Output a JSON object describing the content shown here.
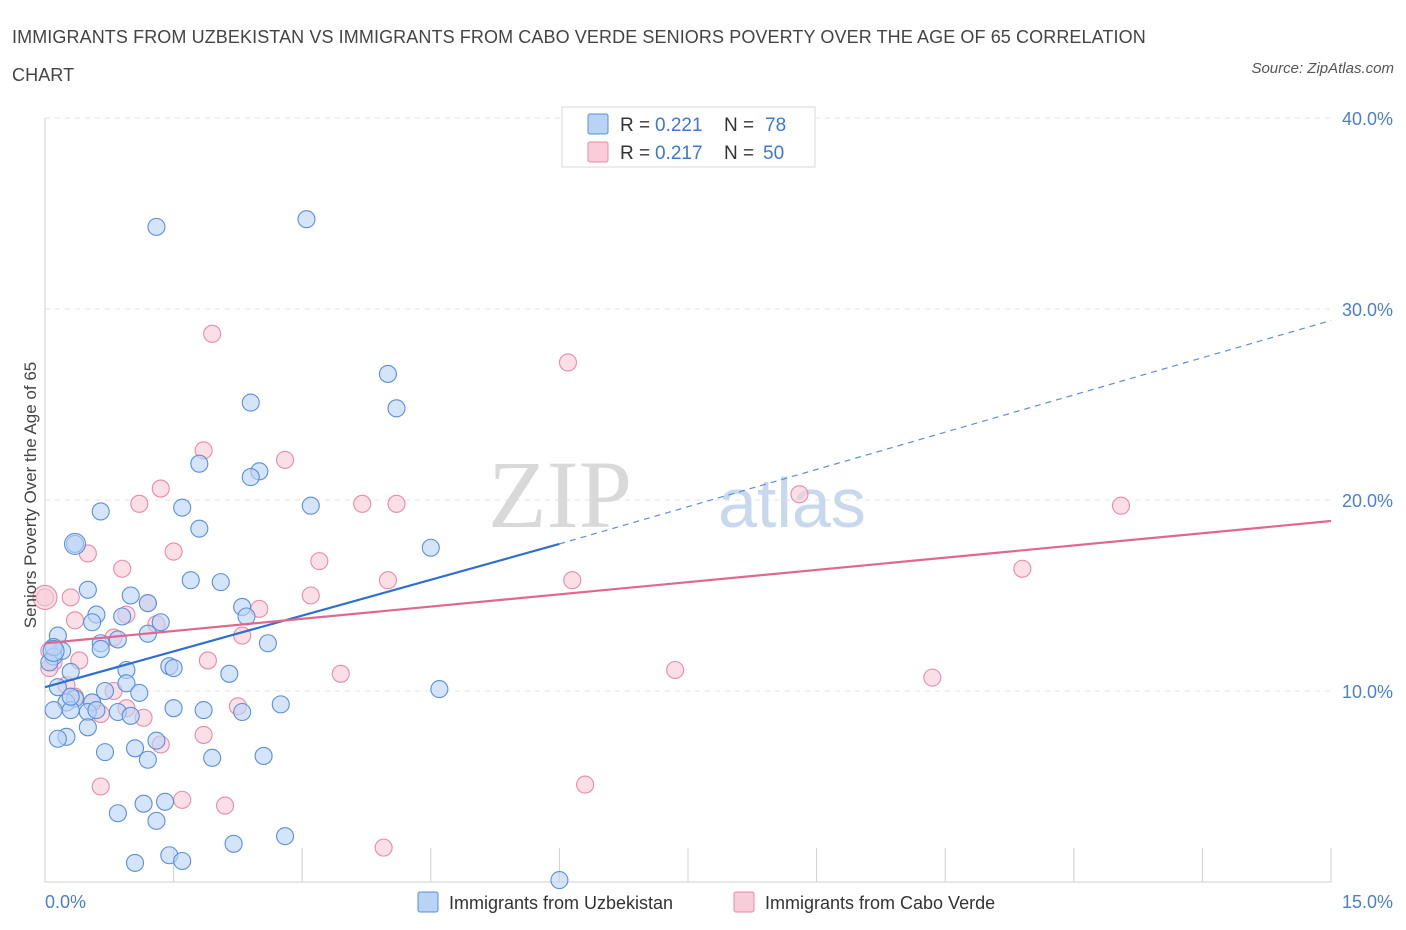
{
  "title": "IMMIGRANTS FROM UZBEKISTAN VS IMMIGRANTS FROM CABO VERDE SENIORS POVERTY OVER THE AGE OF 65 CORRELATION CHART",
  "source": "Source: ZipAtlas.com",
  "watermark": {
    "zip": "ZIP",
    "atlas": "atlas"
  },
  "legend_top": [
    {
      "r_label": "R =",
      "r_value": "0.221",
      "n_label": "N =",
      "n_value": "78",
      "color": "#5b8fd9"
    },
    {
      "r_label": "R =",
      "r_value": "0.217",
      "n_label": "N =",
      "n_value": "50",
      "color": "#e98aa8"
    }
  ],
  "chart_data": {
    "type": "scatter",
    "title": "IMMIGRANTS FROM UZBEKISTAN VS IMMIGRANTS FROM CABO VERDE SENIORS POVERTY OVER THE AGE OF 65 CORRELATION CHART",
    "xlabel": "",
    "ylabel": "Seniors Poverty Over the Age of 65",
    "xlim": [
      0,
      15
    ],
    "ylim": [
      0,
      40
    ],
    "x_ticks": [
      "0.0%",
      "15.0%"
    ],
    "y_ticks": [
      "10.0%",
      "20.0%",
      "30.0%",
      "40.0%"
    ],
    "y_tick_values": [
      10,
      20,
      30,
      40
    ],
    "grid": true,
    "legend": "bottom-center",
    "series": [
      {
        "name": "Immigrants from Uzbekistan",
        "color": "#5b8fd9",
        "fill": "#b9d3f5",
        "R": 0.221,
        "N": 78,
        "trend": {
          "x": [
            0,
            6
          ],
          "y": [
            10.2,
            17.7
          ],
          "dashed_x": [
            6,
            15
          ],
          "dashed_y": [
            17.7,
            29.4
          ]
        },
        "points": [
          [
            1.3,
            34.3
          ],
          [
            3.05,
            34.7
          ],
          [
            4.0,
            26.6
          ],
          [
            2.4,
            25.1
          ],
          [
            4.1,
            24.8
          ],
          [
            1.8,
            21.9
          ],
          [
            2.5,
            21.5
          ],
          [
            2.4,
            21.2
          ],
          [
            0.65,
            19.4
          ],
          [
            1.6,
            19.6
          ],
          [
            3.1,
            19.7
          ],
          [
            1.8,
            18.5
          ],
          [
            0.35,
            17.7
          ],
          [
            4.5,
            17.5
          ],
          [
            1.7,
            15.8
          ],
          [
            2.05,
            15.7
          ],
          [
            0.5,
            15.3
          ],
          [
            1.0,
            15.0
          ],
          [
            1.2,
            14.6
          ],
          [
            2.3,
            14.4
          ],
          [
            0.6,
            14.0
          ],
          [
            0.9,
            13.9
          ],
          [
            2.35,
            13.9
          ],
          [
            1.35,
            13.6
          ],
          [
            0.55,
            13.6
          ],
          [
            1.2,
            13.0
          ],
          [
            0.15,
            12.9
          ],
          [
            0.85,
            12.7
          ],
          [
            0.65,
            12.5
          ],
          [
            2.6,
            12.5
          ],
          [
            0.65,
            12.2
          ],
          [
            0.2,
            12.1
          ],
          [
            0.1,
            11.8
          ],
          [
            0.05,
            11.5
          ],
          [
            0.3,
            11.0
          ],
          [
            1.45,
            11.3
          ],
          [
            1.5,
            11.2
          ],
          [
            0.95,
            11.1
          ],
          [
            2.15,
            10.9
          ],
          [
            0.95,
            10.4
          ],
          [
            0.15,
            10.2
          ],
          [
            0.7,
            10.0
          ],
          [
            1.1,
            9.9
          ],
          [
            4.6,
            10.1
          ],
          [
            0.35,
            9.6
          ],
          [
            0.25,
            9.4
          ],
          [
            0.55,
            9.4
          ],
          [
            0.1,
            9.0
          ],
          [
            0.3,
            9.0
          ],
          [
            0.5,
            8.9
          ],
          [
            2.75,
            9.3
          ],
          [
            1.5,
            9.1
          ],
          [
            1.85,
            9.0
          ],
          [
            2.3,
            8.9
          ],
          [
            0.85,
            8.9
          ],
          [
            1.0,
            8.7
          ],
          [
            0.5,
            8.1
          ],
          [
            0.25,
            7.6
          ],
          [
            0.15,
            7.5
          ],
          [
            1.3,
            7.4
          ],
          [
            0.7,
            6.8
          ],
          [
            1.05,
            7.0
          ],
          [
            1.2,
            6.4
          ],
          [
            1.95,
            6.5
          ],
          [
            2.55,
            6.6
          ],
          [
            1.15,
            4.1
          ],
          [
            1.4,
            4.2
          ],
          [
            0.85,
            3.6
          ],
          [
            1.3,
            3.2
          ],
          [
            2.2,
            2.0
          ],
          [
            2.8,
            2.4
          ],
          [
            1.45,
            1.4
          ],
          [
            1.6,
            1.1
          ],
          [
            1.05,
            1.0
          ],
          [
            6.0,
            0.1
          ],
          [
            0.1,
            12.3
          ],
          [
            0.3,
            9.7
          ],
          [
            0.6,
            9.0
          ]
        ]
      },
      {
        "name": "Immigrants from Cabo Verde",
        "color": "#e98aa8",
        "fill": "#f9ccd9",
        "R": 0.217,
        "N": 50,
        "trend": {
          "x": [
            0,
            15
          ],
          "y": [
            12.5,
            18.9
          ]
        },
        "points": [
          [
            1.95,
            28.7
          ],
          [
            6.1,
            27.2
          ],
          [
            1.85,
            22.6
          ],
          [
            2.8,
            22.1
          ],
          [
            1.35,
            20.6
          ],
          [
            1.1,
            19.8
          ],
          [
            3.7,
            19.8
          ],
          [
            4.1,
            19.8
          ],
          [
            8.8,
            20.3
          ],
          [
            12.55,
            19.7
          ],
          [
            0.5,
            17.2
          ],
          [
            1.5,
            17.3
          ],
          [
            3.2,
            16.8
          ],
          [
            11.4,
            16.4
          ],
          [
            0.9,
            16.4
          ],
          [
            4.0,
            15.8
          ],
          [
            6.15,
            15.8
          ],
          [
            3.1,
            15.0
          ],
          [
            0.3,
            14.9
          ],
          [
            0.0,
            14.9
          ],
          [
            1.2,
            14.6
          ],
          [
            2.5,
            14.3
          ],
          [
            0.35,
            13.7
          ],
          [
            0.95,
            14.0
          ],
          [
            1.3,
            13.5
          ],
          [
            2.3,
            12.9
          ],
          [
            0.8,
            12.8
          ],
          [
            0.05,
            12.1
          ],
          [
            0.4,
            11.6
          ],
          [
            1.9,
            11.6
          ],
          [
            0.1,
            11.5
          ],
          [
            7.35,
            11.1
          ],
          [
            3.45,
            10.9
          ],
          [
            10.35,
            10.7
          ],
          [
            0.25,
            10.3
          ],
          [
            0.8,
            10.0
          ],
          [
            0.35,
            9.7
          ],
          [
            0.55,
            9.4
          ],
          [
            2.25,
            9.2
          ],
          [
            0.65,
            8.8
          ],
          [
            1.15,
            8.6
          ],
          [
            1.85,
            7.7
          ],
          [
            1.35,
            7.2
          ],
          [
            0.65,
            5.0
          ],
          [
            6.3,
            5.1
          ],
          [
            1.6,
            4.3
          ],
          [
            2.1,
            4.0
          ],
          [
            3.95,
            1.8
          ],
          [
            0.05,
            11.2
          ],
          [
            0.95,
            9.1
          ]
        ]
      }
    ]
  }
}
